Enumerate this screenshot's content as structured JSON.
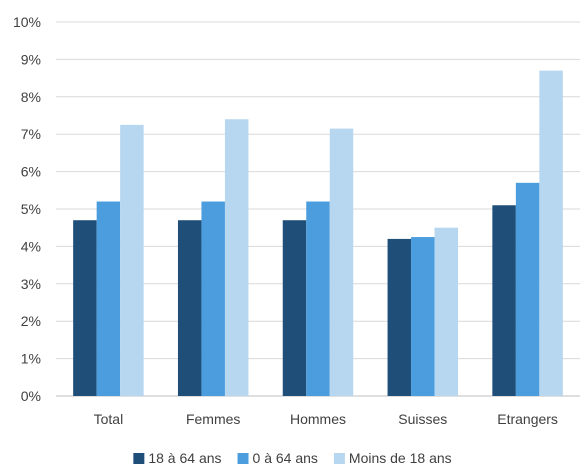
{
  "chart_data": {
    "type": "bar",
    "categories": [
      "Total",
      "Femmes",
      "Hommes",
      "Suisses",
      "Etrangers"
    ],
    "series": [
      {
        "name": "18 à 64 ans",
        "color": "#1f4e79",
        "values": [
          4.7,
          4.7,
          4.7,
          4.2,
          5.1
        ]
      },
      {
        "name": "0 à 64 ans",
        "color": "#4c9dde",
        "values": [
          5.2,
          5.2,
          5.2,
          4.25,
          5.7
        ]
      },
      {
        "name": "Moins de 18 ans",
        "color": "#b7d6f0",
        "values": [
          7.25,
          7.4,
          7.15,
          4.5,
          8.7
        ]
      }
    ],
    "y_ticks": [
      "0%",
      "1%",
      "2%",
      "3%",
      "4%",
      "5%",
      "6%",
      "7%",
      "8%",
      "9%",
      "10%"
    ],
    "ylim": [
      0,
      10
    ],
    "y_unit": "percent",
    "grid": true,
    "legend_position": "bottom"
  }
}
